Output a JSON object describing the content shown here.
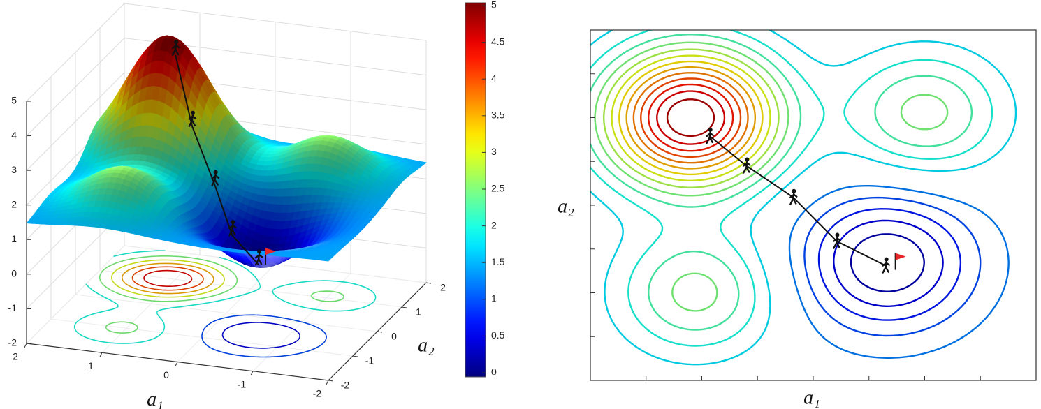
{
  "chart_data": [
    {
      "type": "surface",
      "xlabel": "a₁",
      "ylabel": "a₂",
      "xlim": [
        -2,
        2
      ],
      "xticks": [
        -2,
        -1,
        0,
        1,
        2
      ],
      "ylim": [
        -2,
        2
      ],
      "yticks": [
        -2,
        -1,
        0,
        1,
        2
      ],
      "zlim": [
        -2,
        5
      ],
      "zticks": [
        -2,
        -1,
        0,
        1,
        2,
        3,
        4,
        5
      ],
      "grid": true,
      "base": 1.45,
      "bumps": [
        {
          "x": 1.1,
          "y": 1.0,
          "height": 3.55,
          "width": 0.55
        },
        {
          "x": 1.05,
          "y": -1.0,
          "height": 1.15,
          "width": 0.5
        },
        {
          "x": -1.0,
          "y": 1.05,
          "height": 1.15,
          "width": 0.5
        },
        {
          "x": -0.66,
          "y": -0.65,
          "height": -1.45,
          "width": 0.55
        }
      ],
      "path": {
        "x": [
          0.93,
          0.6,
          0.18,
          -0.21,
          -0.65
        ],
        "y": [
          0.79,
          0.45,
          0.09,
          -0.41,
          -0.69
        ]
      },
      "floor_levels": [
        0.5,
        1,
        2,
        2.5,
        3,
        3.5,
        4,
        4.5
      ],
      "colorbar": {
        "lim": [
          0,
          5
        ],
        "ticks": [
          0,
          0.5,
          1,
          1.5,
          2,
          2.5,
          3,
          3.5,
          4,
          4.5,
          5
        ]
      }
    },
    {
      "type": "contour",
      "xlabel": "a₁",
      "ylabel": "a₂",
      "xlim": [
        2,
        -2
      ],
      "ylim": [
        -2,
        2
      ],
      "base": 1.45,
      "bumps": [
        {
          "x": 1.1,
          "y": 1.0,
          "height": 3.55,
          "width": 0.55
        },
        {
          "x": 1.05,
          "y": -1.0,
          "height": 1.15,
          "width": 0.5
        },
        {
          "x": -1.0,
          "y": 1.05,
          "height": 1.15,
          "width": 0.5
        },
        {
          "x": -0.66,
          "y": -0.65,
          "height": -1.45,
          "width": 0.55
        }
      ],
      "levels": [
        0.25,
        0.5,
        0.75,
        1,
        1.25,
        1.75,
        2,
        2.25,
        2.5,
        2.75,
        3,
        3.25,
        3.5,
        3.75,
        4,
        4.25,
        4.5,
        4.75
      ],
      "colorlim": [
        0,
        5
      ],
      "path": {
        "x": [
          0.93,
          0.6,
          0.18,
          -0.21,
          -0.65
        ],
        "y": [
          0.79,
          0.45,
          0.09,
          -0.41,
          -0.69
        ]
      }
    }
  ]
}
